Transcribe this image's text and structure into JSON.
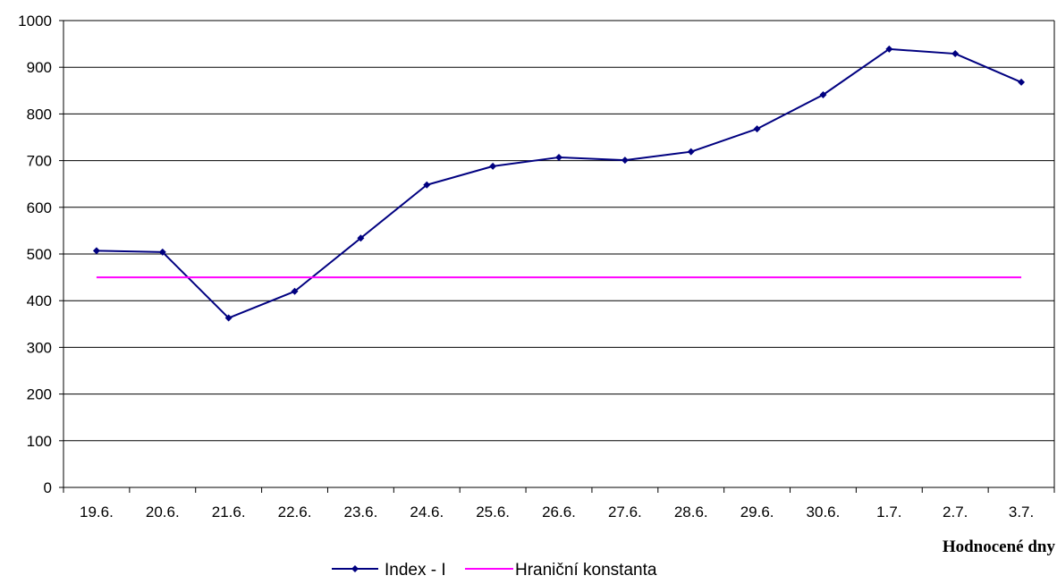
{
  "chart_data": {
    "type": "line",
    "title": "",
    "xlabel": "Hodnocené dny",
    "ylabel": "",
    "categories": [
      "19.6.",
      "20.6.",
      "21.6.",
      "22.6.",
      "23.6.",
      "24.6.",
      "25.6.",
      "26.6.",
      "27.6.",
      "28.6.",
      "29.6.",
      "30.6.",
      "1.7.",
      "2.7.",
      "3.7."
    ],
    "ylim": [
      0,
      1000
    ],
    "yticks": [
      0,
      100,
      200,
      300,
      400,
      500,
      600,
      700,
      800,
      900,
      1000
    ],
    "grid": true,
    "legend_position": "bottom",
    "series": [
      {
        "name": "Index - I",
        "color": "#000080",
        "marker": "diamond",
        "values": [
          507,
          504,
          363,
          420,
          534,
          648,
          688,
          707,
          701,
          719,
          768,
          841,
          939,
          929,
          868
        ]
      },
      {
        "name": "Hraniční konstanta",
        "color": "#ff00ff",
        "marker": "none",
        "values": [
          450,
          450,
          450,
          450,
          450,
          450,
          450,
          450,
          450,
          450,
          450,
          450,
          450,
          450,
          450
        ]
      }
    ]
  }
}
